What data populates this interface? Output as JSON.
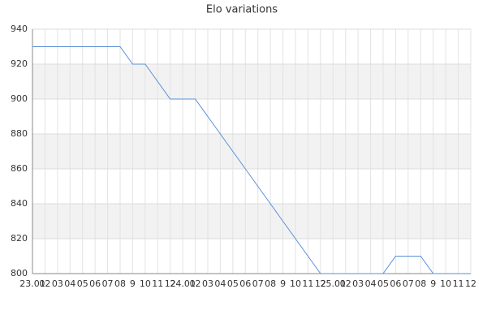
{
  "chart_data": {
    "type": "line",
    "title": "Elo variations",
    "categories": [
      "23.01",
      "02",
      "03",
      "04",
      "05",
      "06",
      "07",
      "08",
      "9",
      "10",
      "11",
      "12",
      "24.01",
      "02",
      "03",
      "04",
      "05",
      "06",
      "07",
      "08",
      "9",
      "10",
      "11",
      "12",
      "25.01",
      "02",
      "03",
      "04",
      "05",
      "06",
      "07",
      "08",
      "9",
      "10",
      "11",
      "12"
    ],
    "series": [
      {
        "name": "Elo",
        "color": "#5b8fd9",
        "values": [
          930,
          930,
          930,
          930,
          930,
          930,
          930,
          930,
          920,
          920,
          910,
          900,
          900,
          900,
          890,
          880,
          870,
          860,
          850,
          840,
          830,
          820,
          810,
          800,
          800,
          800,
          800,
          800,
          800,
          810,
          810,
          810,
          800,
          800,
          800,
          800
        ]
      }
    ],
    "ylim": [
      800,
      940
    ],
    "yticks": [
      800,
      820,
      840,
      860,
      880,
      900,
      920,
      940
    ],
    "grid": true
  }
}
